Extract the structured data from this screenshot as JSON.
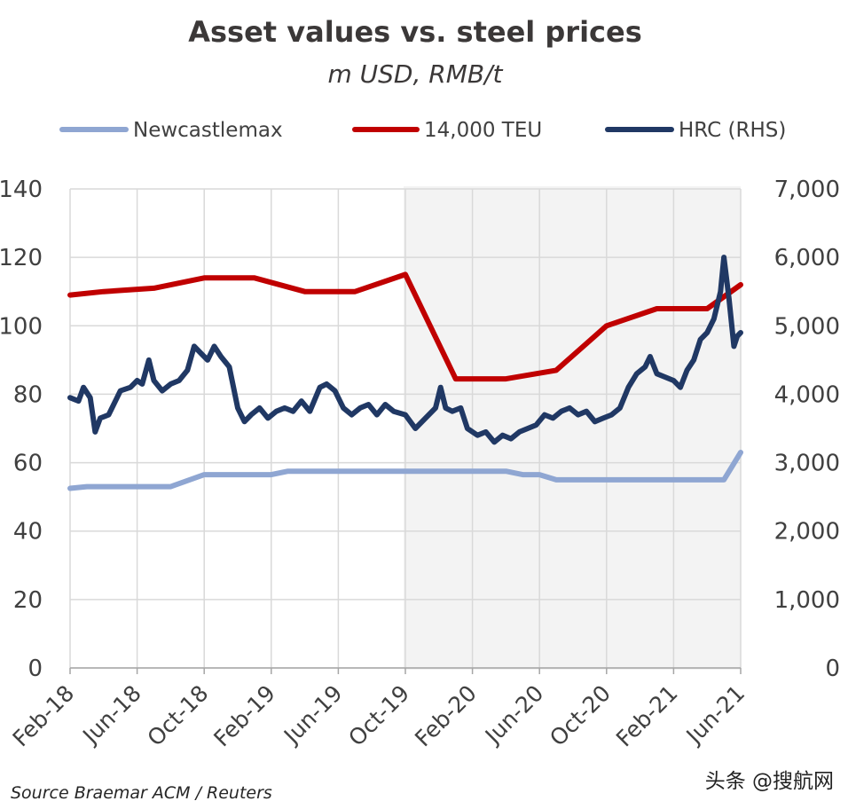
{
  "chart_data": {
    "type": "line",
    "title": "Asset values vs. steel prices",
    "subtitle": "m USD, RMB/t",
    "legend_position": "top",
    "grid": true,
    "x_ticks": [
      "Feb-18",
      "Jun-18",
      "Oct-18",
      "Feb-19",
      "Jun-19",
      "Oct-19",
      "Feb-20",
      "Jun-20",
      "Oct-20",
      "Feb-21",
      "Jun-21"
    ],
    "x_range": [
      0,
      40
    ],
    "y_left": {
      "range": [
        0,
        140
      ],
      "ticks": [
        "0",
        "20",
        "40",
        "60",
        "80",
        "100",
        "120",
        "140"
      ]
    },
    "y_right": {
      "range": [
        0,
        7000
      ],
      "ticks": [
        "0",
        "1,000",
        "2,000",
        "3,000",
        "4,000",
        "5,000",
        "6,000",
        "7,000"
      ]
    },
    "series": [
      {
        "name": "Newcastlemax",
        "axis": "left",
        "color": "#8fa6d2",
        "points": [
          [
            0,
            52.5
          ],
          [
            1,
            53
          ],
          [
            6,
            53
          ],
          [
            8,
            56.5
          ],
          [
            12,
            56.5
          ],
          [
            13,
            57.5
          ],
          [
            26,
            57.5
          ],
          [
            27,
            56.5
          ],
          [
            28,
            56.5
          ],
          [
            29,
            55
          ],
          [
            39,
            55
          ],
          [
            40,
            63
          ]
        ]
      },
      {
        "name": "14,000 TEU",
        "axis": "left",
        "color": "#c00000",
        "points": [
          [
            0,
            109
          ],
          [
            2,
            110
          ],
          [
            5,
            111
          ],
          [
            8,
            114
          ],
          [
            11,
            114
          ],
          [
            14,
            110
          ],
          [
            17,
            110
          ],
          [
            20,
            115
          ],
          [
            23,
            84.5
          ],
          [
            26,
            84.5
          ],
          [
            29,
            87
          ],
          [
            32,
            100
          ],
          [
            35,
            105
          ],
          [
            38,
            105
          ],
          [
            40,
            112
          ]
        ]
      },
      {
        "name": "HRC (RHS)",
        "axis": "right",
        "color": "#203864",
        "points": [
          [
            0,
            3950
          ],
          [
            0.5,
            3900
          ],
          [
            0.8,
            4100
          ],
          [
            1.2,
            3950
          ],
          [
            1.5,
            3450
          ],
          [
            1.8,
            3650
          ],
          [
            2.3,
            3700
          ],
          [
            3,
            4050
          ],
          [
            3.6,
            4100
          ],
          [
            4,
            4200
          ],
          [
            4.3,
            4150
          ],
          [
            4.7,
            4500
          ],
          [
            5,
            4200
          ],
          [
            5.5,
            4050
          ],
          [
            6,
            4150
          ],
          [
            6.5,
            4200
          ],
          [
            7,
            4350
          ],
          [
            7.4,
            4700
          ],
          [
            7.8,
            4600
          ],
          [
            8.2,
            4500
          ],
          [
            8.6,
            4700
          ],
          [
            9,
            4550
          ],
          [
            9.5,
            4400
          ],
          [
            10,
            3800
          ],
          [
            10.4,
            3600
          ],
          [
            10.8,
            3700
          ],
          [
            11.3,
            3800
          ],
          [
            11.8,
            3650
          ],
          [
            12.3,
            3750
          ],
          [
            12.8,
            3800
          ],
          [
            13.3,
            3750
          ],
          [
            13.8,
            3900
          ],
          [
            14.3,
            3750
          ],
          [
            14.9,
            4100
          ],
          [
            15.3,
            4150
          ],
          [
            15.8,
            4050
          ],
          [
            16.3,
            3800
          ],
          [
            16.8,
            3700
          ],
          [
            17.3,
            3800
          ],
          [
            17.8,
            3850
          ],
          [
            18.3,
            3700
          ],
          [
            18.8,
            3850
          ],
          [
            19.3,
            3750
          ],
          [
            20,
            3700
          ],
          [
            20.6,
            3500
          ],
          [
            21.2,
            3650
          ],
          [
            21.8,
            3800
          ],
          [
            22.1,
            4100
          ],
          [
            22.4,
            3800
          ],
          [
            22.8,
            3750
          ],
          [
            23.3,
            3800
          ],
          [
            23.7,
            3500
          ],
          [
            24.3,
            3400
          ],
          [
            24.8,
            3450
          ],
          [
            25.3,
            3300
          ],
          [
            25.8,
            3400
          ],
          [
            26.3,
            3350
          ],
          [
            26.8,
            3450
          ],
          [
            27.3,
            3500
          ],
          [
            27.8,
            3550
          ],
          [
            28.3,
            3700
          ],
          [
            28.8,
            3650
          ],
          [
            29.3,
            3750
          ],
          [
            29.8,
            3800
          ],
          [
            30.3,
            3700
          ],
          [
            30.8,
            3750
          ],
          [
            31.3,
            3600
          ],
          [
            31.8,
            3650
          ],
          [
            32.3,
            3700
          ],
          [
            32.8,
            3800
          ],
          [
            33.3,
            4100
          ],
          [
            33.8,
            4300
          ],
          [
            34.3,
            4400
          ],
          [
            34.6,
            4550
          ],
          [
            35,
            4300
          ],
          [
            35.5,
            4250
          ],
          [
            36,
            4200
          ],
          [
            36.4,
            4100
          ],
          [
            36.8,
            4350
          ],
          [
            37.2,
            4500
          ],
          [
            37.6,
            4800
          ],
          [
            38,
            4900
          ],
          [
            38.4,
            5100
          ],
          [
            38.8,
            5500
          ],
          [
            39,
            6000
          ],
          [
            39.3,
            5400
          ],
          [
            39.6,
            4700
          ],
          [
            39.8,
            4850
          ],
          [
            40,
            4900
          ]
        ]
      }
    ]
  },
  "source": "Source Braemar ACM / Reuters",
  "watermark": "头条 @搜航网"
}
